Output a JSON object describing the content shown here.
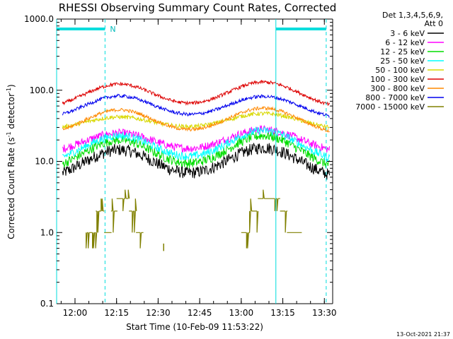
{
  "chart_data": {
    "type": "line",
    "title": "RHESSI Observing Summary Count Rates, Corrected",
    "xlabel": "Start Time (10-Feb-09 11:53:22)",
    "ylabel_main": "Corrected Count Rate (s",
    "ylabel_sup1": "-1",
    "ylabel_mid": " detector",
    "ylabel_sup2": "-1",
    "ylabel_end": ")",
    "y_scale": "log",
    "ylim": [
      0.1,
      1000
    ],
    "y_ticks": [
      {
        "value": 0.1,
        "label": "0.1"
      },
      {
        "value": 1,
        "label": "1.0"
      },
      {
        "value": 10,
        "label": "10.0"
      },
      {
        "value": 100,
        "label": "100.0"
      },
      {
        "value": 1000,
        "label": "1000.0"
      }
    ],
    "xlim": [
      "11:53:22",
      "13:33:00"
    ],
    "x_ticks": [
      "12:00",
      "12:15",
      "12:30",
      "12:45",
      "13:00",
      "13:15",
      "13:30"
    ],
    "legend_placement": "top-right",
    "legend_header": [
      "Det 1,3,4,5,6,9,",
      "Att 0"
    ],
    "footer_stamp": "13-Oct-2021 21:37",
    "night_label": "N",
    "night_intervals": [
      [
        "11:53:22",
        "12:10:50"
      ],
      [
        "13:12:30",
        "13:30:40"
      ]
    ],
    "markers": [
      "11:53:22",
      "12:10:50",
      "13:12:30",
      "13:30:40"
    ],
    "series": [
      {
        "name": "3 - 6 keV",
        "color": "#000000",
        "base": 5.2,
        "peak1": 14.5,
        "peak2": 15.5,
        "noise": 0.09
      },
      {
        "name": "6 - 12 keV",
        "color": "#ff00ff",
        "base": 12.5,
        "peak1": 25.0,
        "peak2": 28.0,
        "noise": 0.06
      },
      {
        "name": "12 - 25 keV",
        "color": "#00dd00",
        "base": 7.0,
        "peak1": 20.0,
        "peak2": 23.0,
        "noise": 0.07
      },
      {
        "name": "25 - 50 keV",
        "color": "#00ffff",
        "base": 9.0,
        "peak1": 23.0,
        "peak2": 27.0,
        "noise": 0.06
      },
      {
        "name": "50 - 100 keV",
        "color": "#d8d800",
        "base": 27.0,
        "peak1": 42.0,
        "peak2": 47.0,
        "noise": 0.03
      },
      {
        "name": "100 - 300 keV",
        "color": "#dd0000",
        "base": 52.0,
        "peak1": 122.0,
        "peak2": 130.0,
        "noise": 0.025
      },
      {
        "name": "300 - 800 keV",
        "color": "#ff8800",
        "base": 22.0,
        "peak1": 53.0,
        "peak2": 56.0,
        "noise": 0.025
      },
      {
        "name": "800 - 7000 keV",
        "color": "#0000ee",
        "base": 37.0,
        "peak1": 83.0,
        "peak2": 82.0,
        "noise": 0.025
      },
      {
        "name": "7000 - 15000 keV",
        "color": "#808000",
        "base": 0,
        "peak1": 0,
        "peak2": 0,
        "noise": 0
      }
    ],
    "peaks": [
      "12:16:00",
      "13:08:00"
    ],
    "flare_segments": [
      {
        "start": "12:04:00",
        "end": "12:07:30",
        "value": 1.0
      },
      {
        "start": "12:07:30",
        "end": "12:10:30",
        "value": 2.0
      },
      {
        "start": "12:10:30",
        "end": "12:13:00",
        "value": 1.0
      },
      {
        "start": "12:13:00",
        "end": "12:15:00",
        "value": 2.0
      },
      {
        "start": "12:15:00",
        "end": "12:19:30",
        "value": 3.0
      },
      {
        "start": "12:19:30",
        "end": "12:22:00",
        "value": 2.0
      },
      {
        "start": "12:22:00",
        "end": "12:24:30",
        "value": 1.0
      },
      {
        "start": "13:00:00",
        "end": "13:03:00",
        "value": 1.0
      },
      {
        "start": "13:03:00",
        "end": "13:06:00",
        "value": 2.0
      },
      {
        "start": "13:06:00",
        "end": "13:14:00",
        "value": 3.0
      },
      {
        "start": "13:14:00",
        "end": "13:16:30",
        "value": 2.0
      },
      {
        "start": "13:16:30",
        "end": "13:21:30",
        "value": 1.0
      }
    ]
  }
}
